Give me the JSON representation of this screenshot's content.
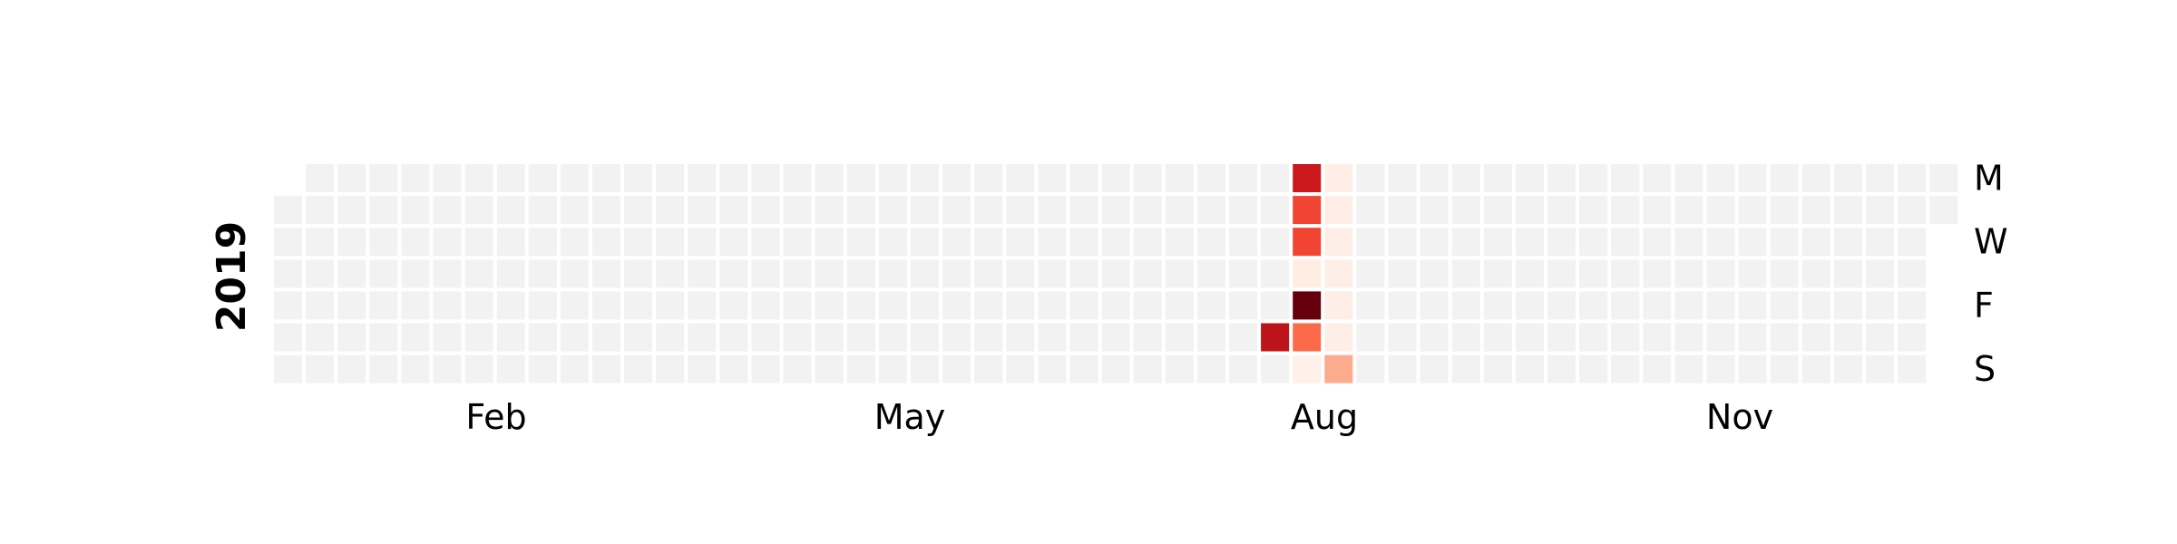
{
  "chart_data": {
    "type": "heatmap",
    "subtype": "calendar",
    "year": "2019",
    "month_labels": [
      "Feb",
      "May",
      "Aug",
      "Nov"
    ],
    "day_labels": [
      "M",
      "W",
      "F",
      "S"
    ],
    "colormap": "Reds",
    "empty_color": "#f2f2f2",
    "grid": false,
    "legend": "none",
    "values": [
      {
        "date": "2019-08-10",
        "value": 0.8
      },
      {
        "date": "2019-08-12",
        "value": 0.75
      },
      {
        "date": "2019-08-13",
        "value": 0.6
      },
      {
        "date": "2019-08-14",
        "value": 0.6
      },
      {
        "date": "2019-08-15",
        "value": 0.05
      },
      {
        "date": "2019-08-16",
        "value": 1.0
      },
      {
        "date": "2019-08-17",
        "value": 0.5
      },
      {
        "date": "2019-08-18",
        "value": 0.03
      },
      {
        "date": "2019-08-19",
        "value": 0.04
      },
      {
        "date": "2019-08-20",
        "value": 0.04
      },
      {
        "date": "2019-08-21",
        "value": 0.04
      },
      {
        "date": "2019-08-22",
        "value": 0.04
      },
      {
        "date": "2019-08-23",
        "value": 0.04
      },
      {
        "date": "2019-08-24",
        "value": 0.04
      },
      {
        "date": "2019-08-25",
        "value": 0.3
      }
    ]
  }
}
